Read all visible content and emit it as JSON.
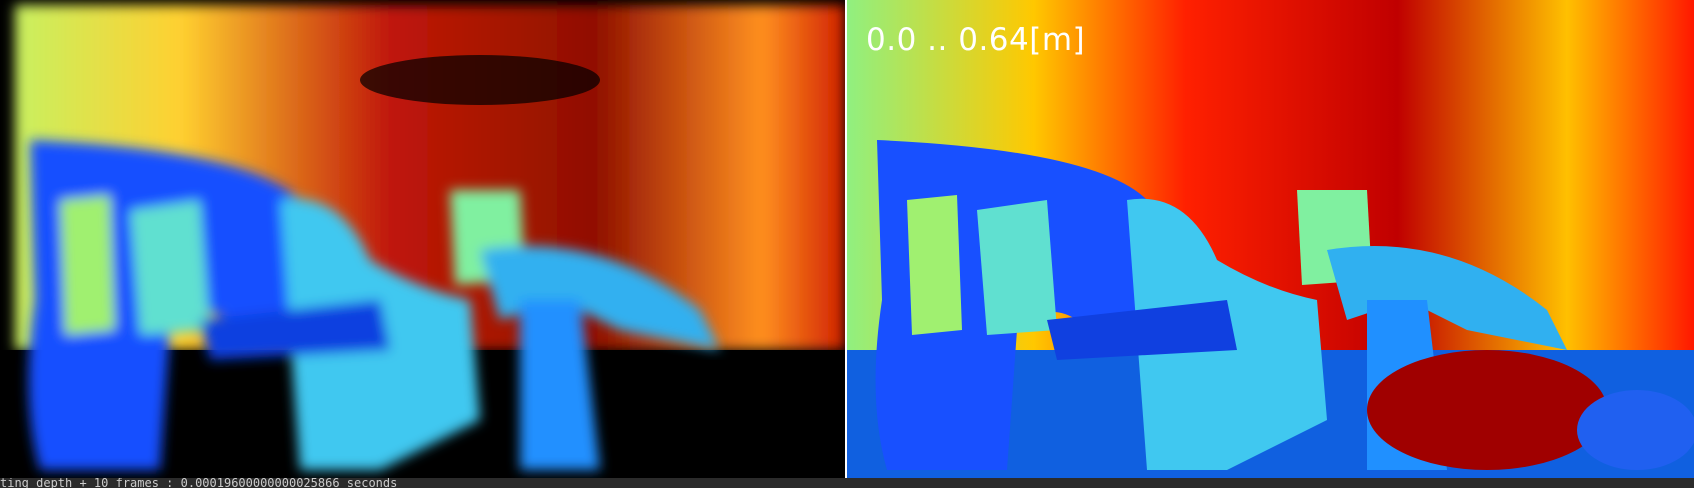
{
  "overlay_label": "0.0 .. 0.64[m]",
  "status_text": "ting depth + 10 frames : 0.00019600000000025866 seconds"
}
